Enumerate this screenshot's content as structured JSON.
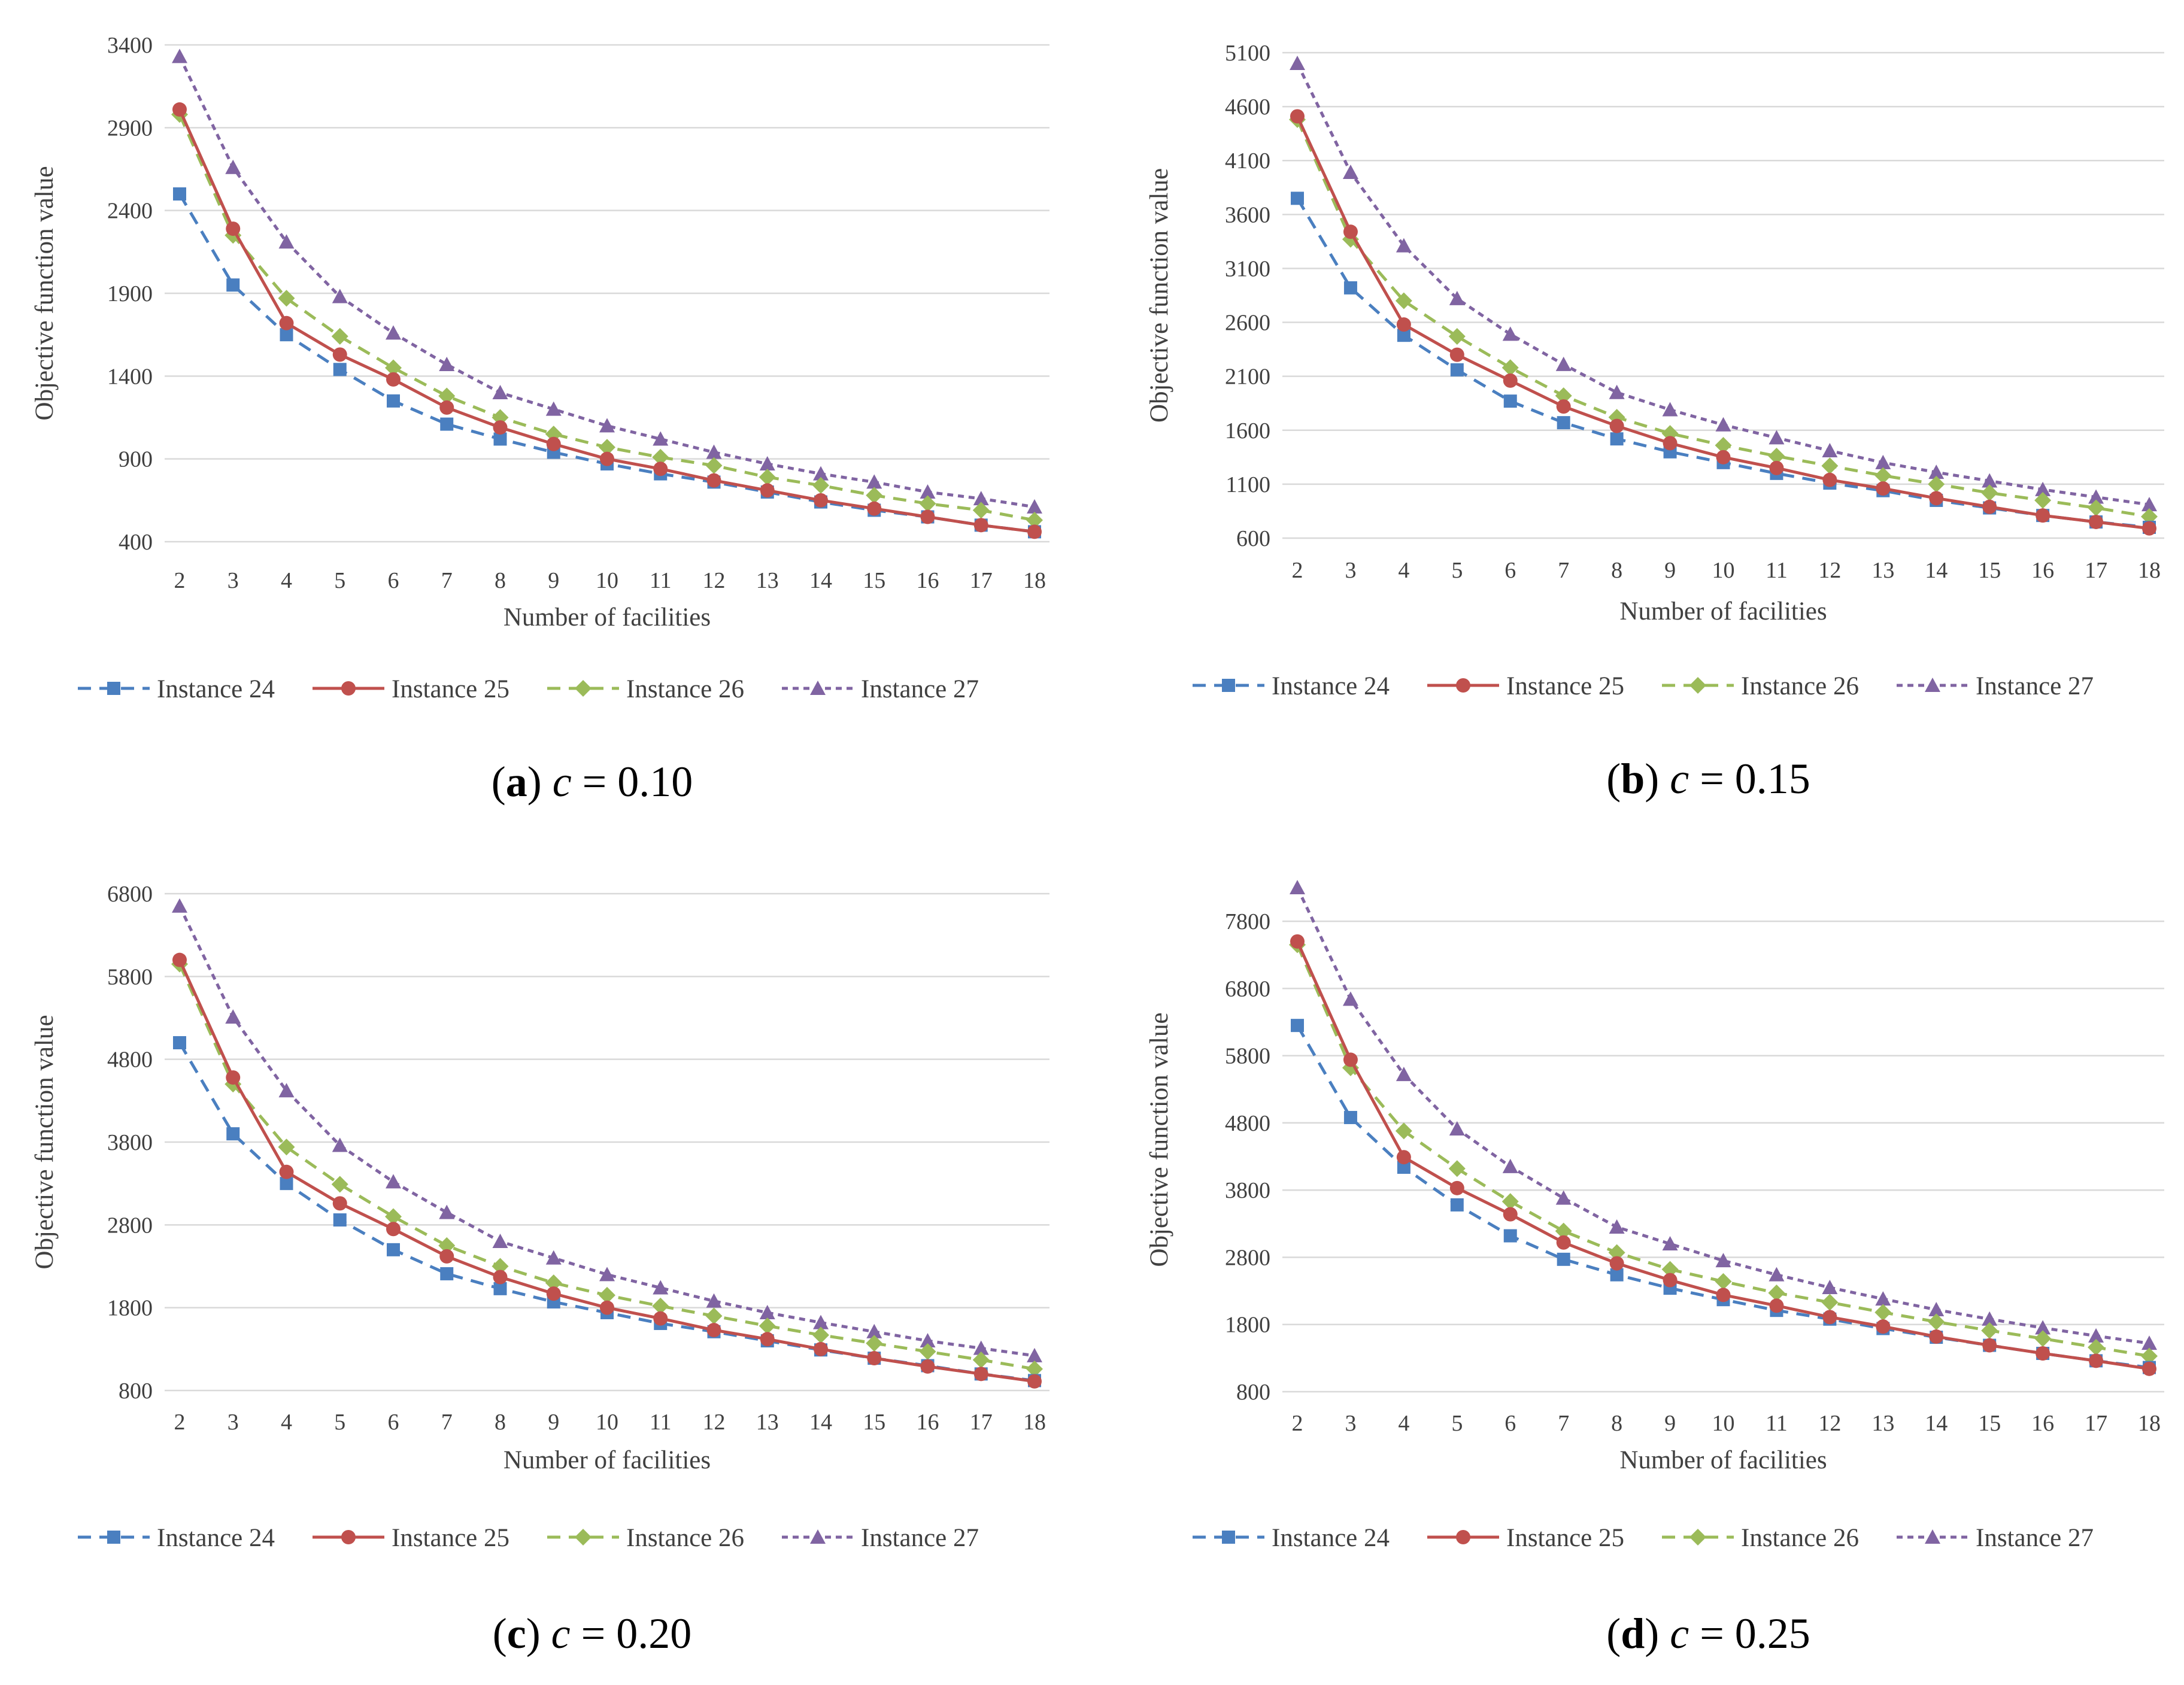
{
  "series_style": [
    {
      "name": "Instance 24",
      "color": "#4a7fc0",
      "dash": "dash",
      "marker": "square"
    },
    {
      "name": "Instance 25",
      "color": "#c0504d",
      "dash": "solid",
      "marker": "circle"
    },
    {
      "name": "Instance 26",
      "color": "#9bbb59",
      "dash": "dash",
      "marker": "diamond"
    },
    {
      "name": "Instance 27",
      "color": "#8064a2",
      "dash": "dot",
      "marker": "triangle"
    }
  ],
  "chart_data": [
    {
      "type": "line",
      "panel": "a",
      "caption_letter": "a",
      "caption_var": "c",
      "caption_value": " = 0.10",
      "xlabel": "Number of facilities",
      "ylabel": "Objective function value",
      "categories": [
        "2",
        "3",
        "4",
        "5",
        "6",
        "7",
        "8",
        "9",
        "10",
        "11",
        "12",
        "13",
        "14",
        "15",
        "16",
        "17",
        "18"
      ],
      "ylim": [
        400,
        3400
      ],
      "yticks": [
        "3400",
        "2900",
        "2400",
        "1900",
        "1400",
        "900",
        "400"
      ],
      "ytick_values": [
        3400,
        2900,
        2400,
        1900,
        1400,
        900,
        400
      ],
      "series": [
        {
          "name": "Instance 24",
          "values": [
            2500,
            1950,
            1650,
            1440,
            1250,
            1110,
            1020,
            940,
            870,
            810,
            760,
            700,
            640,
            590,
            550,
            500,
            460
          ]
        },
        {
          "name": "Instance 25",
          "values": [
            3010,
            2290,
            1720,
            1530,
            1380,
            1210,
            1090,
            990,
            900,
            840,
            770,
            710,
            650,
            600,
            550,
            500,
            460
          ]
        },
        {
          "name": "Instance 26",
          "values": [
            2980,
            2250,
            1870,
            1640,
            1450,
            1280,
            1150,
            1050,
            970,
            910,
            860,
            790,
            740,
            680,
            630,
            590,
            530
          ]
        },
        {
          "name": "Instance 27",
          "values": [
            3330,
            2660,
            2210,
            1880,
            1660,
            1470,
            1300,
            1200,
            1100,
            1020,
            940,
            870,
            810,
            760,
            700,
            660,
            610
          ]
        }
      ]
    },
    {
      "type": "line",
      "panel": "b",
      "caption_letter": "b",
      "caption_var": "c",
      "caption_value": " = 0.15",
      "xlabel": "Number of facilities",
      "ylabel": "Objective function value",
      "categories": [
        "2",
        "3",
        "4",
        "5",
        "6",
        "7",
        "8",
        "9",
        "10",
        "11",
        "12",
        "13",
        "14",
        "15",
        "16",
        "17",
        "18"
      ],
      "ylim": [
        600,
        5100
      ],
      "yticks": [
        "5100",
        "4600",
        "4100",
        "3600",
        "3100",
        "2600",
        "2100",
        "1600",
        "1100",
        "600"
      ],
      "ytick_values": [
        5100,
        4600,
        4100,
        3600,
        3100,
        2600,
        2100,
        1600,
        1100,
        600
      ],
      "series": [
        {
          "name": "Instance 24",
          "values": [
            3750,
            2920,
            2480,
            2160,
            1870,
            1670,
            1520,
            1400,
            1300,
            1200,
            1110,
            1040,
            950,
            880,
            810,
            750,
            700
          ]
        },
        {
          "name": "Instance 25",
          "values": [
            4510,
            3440,
            2580,
            2300,
            2060,
            1820,
            1640,
            1480,
            1350,
            1250,
            1140,
            1060,
            970,
            890,
            810,
            750,
            690
          ]
        },
        {
          "name": "Instance 26",
          "values": [
            4480,
            3370,
            2800,
            2470,
            2180,
            1920,
            1720,
            1570,
            1460,
            1360,
            1270,
            1180,
            1100,
            1020,
            950,
            880,
            800
          ]
        },
        {
          "name": "Instance 27",
          "values": [
            5000,
            3990,
            3310,
            2820,
            2490,
            2210,
            1950,
            1790,
            1650,
            1530,
            1410,
            1300,
            1210,
            1130,
            1050,
            980,
            910
          ]
        }
      ]
    },
    {
      "type": "line",
      "panel": "c",
      "caption_letter": "c",
      "caption_var": "c",
      "caption_value": " = 0.20",
      "xlabel": "Number of facilities",
      "ylabel": "Objective function value",
      "categories": [
        "2",
        "3",
        "4",
        "5",
        "6",
        "7",
        "8",
        "9",
        "10",
        "11",
        "12",
        "13",
        "14",
        "15",
        "16",
        "17",
        "18"
      ],
      "ylim": [
        800,
        6800
      ],
      "yticks": [
        "6800",
        "5800",
        "4800",
        "3800",
        "2800",
        "1800",
        "800"
      ],
      "ytick_values": [
        6800,
        5800,
        4800,
        3800,
        2800,
        1800,
        800
      ],
      "series": [
        {
          "name": "Instance 24",
          "values": [
            5000,
            3900,
            3300,
            2860,
            2500,
            2210,
            2030,
            1870,
            1740,
            1610,
            1510,
            1400,
            1290,
            1190,
            1100,
            1000,
            920
          ]
        },
        {
          "name": "Instance 25",
          "values": [
            6000,
            4580,
            3440,
            3060,
            2750,
            2420,
            2170,
            1970,
            1800,
            1670,
            1530,
            1420,
            1300,
            1190,
            1090,
            1000,
            910
          ]
        },
        {
          "name": "Instance 26",
          "values": [
            5950,
            4500,
            3740,
            3290,
            2900,
            2550,
            2300,
            2100,
            1950,
            1820,
            1700,
            1580,
            1470,
            1370,
            1270,
            1170,
            1060
          ]
        },
        {
          "name": "Instance 27",
          "values": [
            6650,
            5310,
            4420,
            3760,
            3320,
            2950,
            2600,
            2400,
            2200,
            2040,
            1880,
            1740,
            1620,
            1510,
            1400,
            1310,
            1220
          ]
        }
      ]
    },
    {
      "type": "line",
      "panel": "d",
      "caption_letter": "d",
      "caption_var": "c",
      "caption_value": " = 0.25",
      "xlabel": "Number of facilities",
      "ylabel": "Objective function value",
      "categories": [
        "2",
        "3",
        "4",
        "5",
        "6",
        "7",
        "8",
        "9",
        "10",
        "11",
        "12",
        "13",
        "14",
        "15",
        "16",
        "17",
        "18"
      ],
      "ylim": [
        800,
        8300
      ],
      "yticks": [
        "7800",
        "6800",
        "5800",
        "4800",
        "3800",
        "2800",
        "1800",
        "800"
      ],
      "ytick_values": [
        7800,
        6800,
        5800,
        4800,
        3800,
        2800,
        1800,
        800
      ],
      "series": [
        {
          "name": "Instance 24",
          "values": [
            6250,
            4880,
            4140,
            3580,
            3120,
            2770,
            2540,
            2340,
            2170,
            2010,
            1880,
            1740,
            1610,
            1490,
            1370,
            1260,
            1160
          ]
        },
        {
          "name": "Instance 25",
          "values": [
            7500,
            5740,
            4290,
            3830,
            3440,
            3020,
            2710,
            2460,
            2240,
            2080,
            1910,
            1770,
            1620,
            1490,
            1370,
            1260,
            1140
          ]
        },
        {
          "name": "Instance 26",
          "values": [
            7450,
            5620,
            4680,
            4120,
            3630,
            3190,
            2870,
            2620,
            2440,
            2270,
            2130,
            1980,
            1840,
            1710,
            1590,
            1460,
            1330
          ]
        },
        {
          "name": "Instance 27",
          "values": [
            8300,
            6640,
            5520,
            4710,
            4150,
            3680,
            3250,
            3000,
            2750,
            2540,
            2350,
            2180,
            2020,
            1880,
            1750,
            1630,
            1520
          ]
        }
      ]
    }
  ]
}
